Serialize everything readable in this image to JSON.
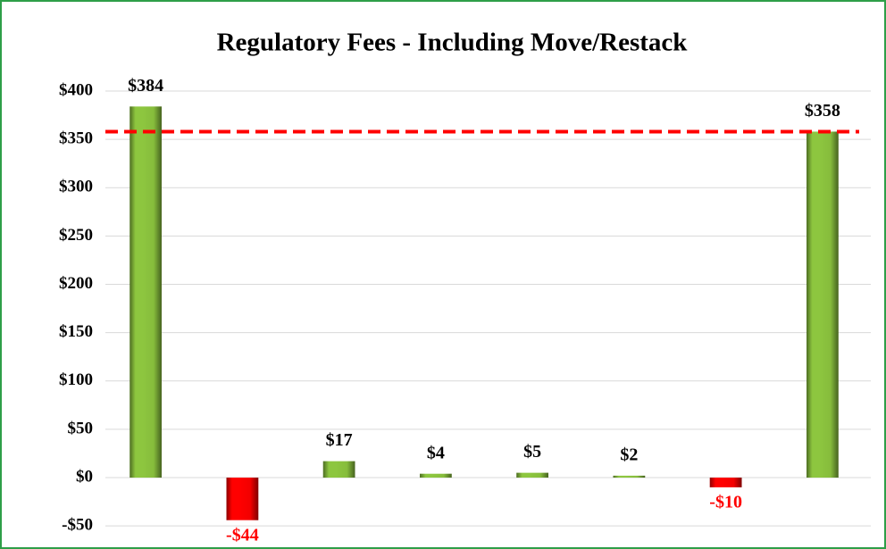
{
  "chart_data": {
    "type": "bar",
    "title": "Regulatory Fees - Including Move/Restack",
    "categories": [
      null,
      null,
      null,
      null,
      null,
      null,
      null,
      null
    ],
    "values": [
      384,
      -44,
      17,
      4,
      5,
      2,
      -10,
      358
    ],
    "value_labels": [
      "$384",
      "-$44",
      "$17",
      "$4",
      "$5",
      "$2",
      "-$10",
      "$358"
    ],
    "colors": [
      "#8dc63f",
      "#ff0000",
      "#8dc63f",
      "#8dc63f",
      "#8dc63f",
      "#8dc63f",
      "#ff0000",
      "#8dc63f"
    ],
    "ylim": [
      -60,
      400
    ],
    "yticks": [
      {
        "value": -50,
        "label": "-$50"
      },
      {
        "value": 0,
        "label": "$0"
      },
      {
        "value": 50,
        "label": "$50"
      },
      {
        "value": 100,
        "label": "$100"
      },
      {
        "value": 150,
        "label": "$150"
      },
      {
        "value": 200,
        "label": "$200"
      },
      {
        "value": 250,
        "label": "$250"
      },
      {
        "value": 300,
        "label": "$300"
      },
      {
        "value": 350,
        "label": "$350"
      },
      {
        "value": 400,
        "label": "$400"
      }
    ],
    "grid": true,
    "reference_line": {
      "value": 358,
      "color": "#ff0000",
      "style": "dashed"
    }
  }
}
